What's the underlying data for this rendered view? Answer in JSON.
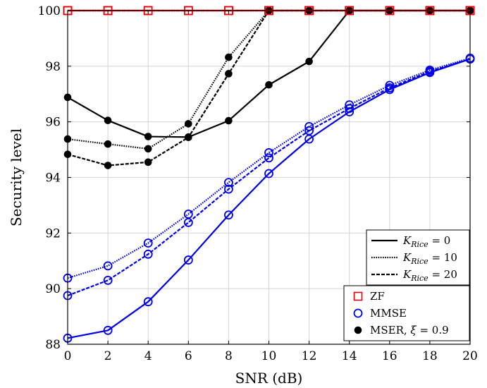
{
  "chart_data": {
    "type": "line",
    "xlabel": "SNR (dB)",
    "ylabel": "Security level",
    "xlim": [
      0,
      20
    ],
    "ylim": [
      88,
      100
    ],
    "grid": true,
    "x": [
      0,
      2,
      4,
      6,
      8,
      10,
      12,
      14,
      16,
      18,
      20
    ],
    "x_ticks": [
      "0",
      "2",
      "4",
      "6",
      "8",
      "10",
      "12",
      "14",
      "16",
      "18",
      "20"
    ],
    "y_ticks": [
      "88",
      "90",
      "92",
      "94",
      "96",
      "98",
      "100"
    ],
    "colors": {
      "ZF": "#e8000b",
      "MMSE": "#0000e6",
      "MSER": "#000000"
    },
    "series": [
      {
        "precoder": "ZF",
        "k_rice": 0,
        "values": [
          100,
          100,
          100,
          100,
          100,
          100,
          100,
          100,
          100,
          100,
          100
        ]
      },
      {
        "precoder": "ZF",
        "k_rice": 10,
        "values": [
          100,
          100,
          100,
          100,
          100,
          100,
          100,
          100,
          100,
          100,
          100
        ]
      },
      {
        "precoder": "ZF",
        "k_rice": 20,
        "values": [
          100,
          100,
          100,
          100,
          100,
          100,
          100,
          100,
          100,
          100,
          100
        ]
      },
      {
        "precoder": "MMSE",
        "k_rice": 0,
        "values": [
          88.22,
          88.5,
          89.53,
          91.03,
          92.65,
          94.14,
          95.38,
          96.36,
          97.16,
          97.77,
          98.26
        ]
      },
      {
        "precoder": "MMSE",
        "k_rice": 10,
        "values": [
          90.38,
          90.82,
          91.64,
          92.68,
          93.82,
          94.89,
          95.83,
          96.61,
          97.31,
          97.86,
          98.29
        ]
      },
      {
        "precoder": "MMSE",
        "k_rice": 20,
        "values": [
          89.75,
          90.3,
          91.24,
          92.38,
          93.58,
          94.7,
          95.68,
          96.48,
          97.22,
          97.81,
          98.26
        ]
      },
      {
        "precoder": "MSER",
        "k_rice": 0,
        "values": [
          96.88,
          96.05,
          95.47,
          95.45,
          96.04,
          97.33,
          98.17,
          100,
          100,
          100,
          100
        ]
      },
      {
        "precoder": "MSER",
        "k_rice": 10,
        "values": [
          95.38,
          95.2,
          95.03,
          95.93,
          98.32,
          100,
          100,
          100,
          100,
          100,
          100
        ]
      },
      {
        "precoder": "MSER",
        "k_rice": 20,
        "values": [
          94.83,
          94.43,
          94.55,
          95.44,
          97.73,
          100,
          100,
          100,
          100,
          100,
          100
        ]
      }
    ],
    "legend": {
      "placement": "bottom-right",
      "line_styles": [
        {
          "label": "K_Rice = 0",
          "sub": "Rice",
          "value": "0",
          "style": "solid"
        },
        {
          "label": "K_Rice = 10",
          "sub": "Rice",
          "value": "10",
          "style": "dotted"
        },
        {
          "label": "K_Rice = 20",
          "sub": "Rice",
          "value": "20",
          "style": "dashed"
        }
      ],
      "markers": [
        {
          "label": "ZF",
          "marker": "square",
          "precoder": "ZF"
        },
        {
          "label": "MMSE",
          "marker": "circle",
          "precoder": "MMSE"
        },
        {
          "label_main": "MSER, ",
          "label_symbol": "ξ",
          "label_value": " = 0.9",
          "marker": "dot",
          "precoder": "MSER"
        }
      ]
    }
  }
}
